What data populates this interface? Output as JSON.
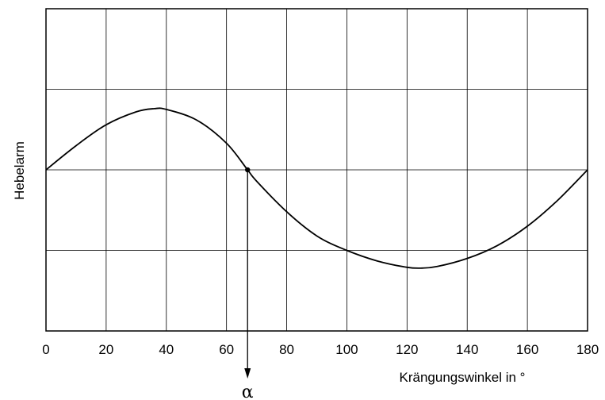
{
  "chart_data": {
    "type": "line",
    "xlabel": "Krängungswinkel in °",
    "ylabel": "Hebelarm",
    "xlim": [
      0,
      180
    ],
    "ylim": [
      -2,
      2
    ],
    "x_ticks": [
      0,
      20,
      40,
      60,
      80,
      100,
      120,
      140,
      160,
      180
    ],
    "y_gridlines": [
      -2,
      -1,
      0,
      1,
      2
    ],
    "y_tick_labels_shown": false,
    "grid": true,
    "series": [
      {
        "x": [
          0,
          10,
          20,
          30,
          36,
          40,
          50,
          60,
          67,
          70,
          80,
          90,
          100,
          110,
          120,
          125,
          130,
          140,
          150,
          160,
          170,
          180
        ],
        "y": [
          0,
          0.3,
          0.56,
          0.72,
          0.76,
          0.75,
          0.62,
          0.33,
          0,
          -0.14,
          -0.52,
          -0.82,
          -1.0,
          -1.13,
          -1.21,
          -1.22,
          -1.2,
          -1.1,
          -0.94,
          -0.7,
          -0.38,
          0
        ],
        "color": "#000000"
      }
    ],
    "annotations": [
      {
        "type": "marker-arrow",
        "x": 67,
        "y": 0,
        "label": "α"
      }
    ]
  }
}
